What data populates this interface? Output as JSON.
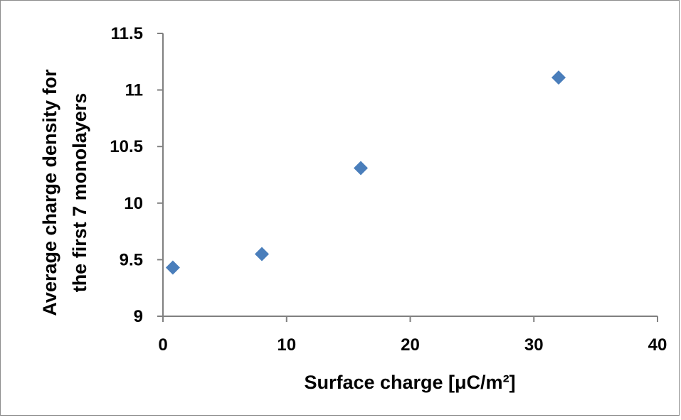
{
  "chart_data": {
    "type": "scatter",
    "xlabel": "Surface charge [μC/m²]",
    "ylabel_lines": [
      "Average charge density for",
      "the first 7 monolayers"
    ],
    "xlim": [
      0,
      40
    ],
    "ylim": [
      9,
      11.5
    ],
    "x_ticks": [
      0,
      10,
      20,
      30,
      40
    ],
    "y_ticks": [
      9,
      9.5,
      10,
      10.5,
      11,
      11.5
    ],
    "y_tick_labels": [
      "9",
      "9.5",
      "10",
      "10.5",
      "11",
      "11.5"
    ],
    "marker": "diamond",
    "grid": false,
    "legend": "none",
    "series": [
      {
        "color": "#4a7ebb",
        "points": [
          {
            "x": 0.8,
            "y": 9.43
          },
          {
            "x": 8,
            "y": 9.55
          },
          {
            "x": 16,
            "y": 10.31
          },
          {
            "x": 32,
            "y": 11.11
          }
        ]
      }
    ]
  }
}
